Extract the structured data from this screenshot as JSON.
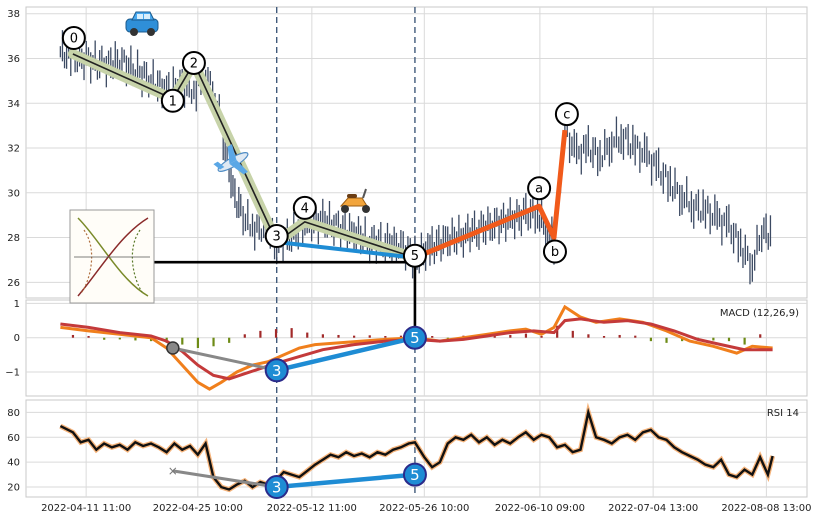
{
  "chart_data": {
    "type": "line",
    "panels": [
      {
        "id": "price",
        "ylim": [
          25.3,
          38.3
        ],
        "yticks": [
          26,
          28,
          30,
          32,
          34,
          36,
          38
        ]
      },
      {
        "id": "macd",
        "name": "MACD (12,26,9)",
        "ylim": [
          -1.7,
          1.1
        ],
        "yticks": [
          -1,
          0,
          1
        ],
        "yticklabels": [
          "−1",
          "0",
          "1"
        ]
      },
      {
        "id": "rsi",
        "name": "RSI 14",
        "ylim": [
          12,
          90
        ],
        "yticks": [
          20,
          40,
          60,
          80
        ],
        "yticklabels": [
          "20",
          "40",
          "60",
          "80"
        ]
      }
    ],
    "x_range": [
      0,
      100
    ],
    "x_ticks": [
      {
        "x": 7.7,
        "label": "2022-04-11 11:00"
      },
      {
        "x": 22.0,
        "label": "2022-04-25 10:00"
      },
      {
        "x": 36.6,
        "label": "2022-05-12 11:00"
      },
      {
        "x": 51.0,
        "label": "2022-05-26 10:00"
      },
      {
        "x": 65.8,
        "label": "2022-06-10 09:00"
      },
      {
        "x": 80.3,
        "label": "2022-07-04 13:00"
      },
      {
        "x": 94.8,
        "label": "2022-08-08 13:00"
      }
    ],
    "vlines_x": [
      32.1,
      49.8
    ],
    "price_series": [
      [
        4.4,
        36.3
      ],
      [
        6,
        36.1
      ],
      [
        8,
        35.9
      ],
      [
        10,
        35.7
      ],
      [
        12,
        35.9
      ],
      [
        14,
        35.5
      ],
      [
        16,
        35.0
      ],
      [
        18,
        34.6
      ],
      [
        20,
        34.8
      ],
      [
        21.5,
        34.5
      ],
      [
        23,
        35.3
      ],
      [
        24.5,
        34.0
      ],
      [
        25.5,
        32.0
      ],
      [
        26.5,
        30.1
      ],
      [
        27.5,
        29.1
      ],
      [
        29,
        28.4
      ],
      [
        31,
        28.5
      ],
      [
        32.1,
        27.7
      ],
      [
        34,
        28.1
      ],
      [
        36,
        28.6
      ],
      [
        38,
        28.8
      ],
      [
        40,
        28.4
      ],
      [
        42,
        28.2
      ],
      [
        44,
        27.8
      ],
      [
        46,
        27.8
      ],
      [
        48,
        27.6
      ],
      [
        49.8,
        27.1
      ],
      [
        52,
        27.6
      ],
      [
        54,
        27.9
      ],
      [
        56,
        28.1
      ],
      [
        58,
        28.4
      ],
      [
        60,
        28.6
      ],
      [
        62,
        28.8
      ],
      [
        64,
        29.0
      ],
      [
        65.5,
        29.1
      ],
      [
        66.8,
        28.3
      ],
      [
        67.6,
        27.8
      ],
      [
        69.0,
        32.7
      ],
      [
        70.5,
        31.7
      ],
      [
        72,
        32.0
      ],
      [
        73.5,
        31.6
      ],
      [
        75,
        32.3
      ],
      [
        76.5,
        32.5
      ],
      [
        78,
        32.0
      ],
      [
        79.5,
        31.6
      ],
      [
        81,
        31.0
      ],
      [
        82.5,
        30.4
      ],
      [
        84,
        29.9
      ],
      [
        85.5,
        29.4
      ],
      [
        87,
        29.2
      ],
      [
        88.5,
        28.8
      ],
      [
        90,
        28.5
      ],
      [
        91.5,
        27.6
      ],
      [
        93,
        26.8
      ],
      [
        94.2,
        28.3
      ],
      [
        95.6,
        28.1
      ]
    ],
    "macd_series": {
      "line1": [
        [
          4.4,
          0.3
        ],
        [
          8,
          0.2
        ],
        [
          12,
          0.1
        ],
        [
          16,
          0.0
        ],
        [
          18,
          -0.3
        ],
        [
          20,
          -0.8
        ],
        [
          22,
          -1.3
        ],
        [
          23.5,
          -1.5
        ],
        [
          25,
          -1.3
        ],
        [
          27,
          -1.0
        ],
        [
          29,
          -0.8
        ],
        [
          31,
          -0.7
        ],
        [
          33,
          -0.5
        ],
        [
          35,
          -0.3
        ],
        [
          37,
          -0.2
        ],
        [
          40,
          -0.15
        ],
        [
          43,
          -0.1
        ],
        [
          46,
          -0.05
        ],
        [
          49.8,
          0.0
        ],
        [
          53,
          -0.1
        ],
        [
          56,
          0.0
        ],
        [
          59,
          0.1
        ],
        [
          62,
          0.2
        ],
        [
          64,
          0.25
        ],
        [
          66,
          0.1
        ],
        [
          67.6,
          0.3
        ],
        [
          69.0,
          0.9
        ],
        [
          71,
          0.6
        ],
        [
          73,
          0.45
        ],
        [
          76,
          0.55
        ],
        [
          79,
          0.45
        ],
        [
          82,
          0.2
        ],
        [
          85,
          -0.1
        ],
        [
          88,
          -0.25
        ],
        [
          91,
          -0.45
        ],
        [
          93,
          -0.25
        ],
        [
          95.6,
          -0.3
        ]
      ],
      "line2": [
        [
          4.4,
          0.4
        ],
        [
          8,
          0.3
        ],
        [
          12,
          0.15
        ],
        [
          16,
          0.05
        ],
        [
          18,
          -0.1
        ],
        [
          20,
          -0.4
        ],
        [
          22,
          -0.8
        ],
        [
          24,
          -1.1
        ],
        [
          26,
          -1.2
        ],
        [
          28,
          -1.05
        ],
        [
          30,
          -0.9
        ],
        [
          32,
          -0.75
        ],
        [
          35,
          -0.55
        ],
        [
          38,
          -0.35
        ],
        [
          42,
          -0.2
        ],
        [
          46,
          -0.1
        ],
        [
          49.8,
          -0.05
        ],
        [
          53,
          -0.1
        ],
        [
          56,
          -0.05
        ],
        [
          59,
          0.05
        ],
        [
          62,
          0.15
        ],
        [
          65,
          0.2
        ],
        [
          67.6,
          0.15
        ],
        [
          69.0,
          0.5
        ],
        [
          71,
          0.55
        ],
        [
          74,
          0.45
        ],
        [
          77,
          0.5
        ],
        [
          80,
          0.4
        ],
        [
          83,
          0.2
        ],
        [
          86,
          -0.05
        ],
        [
          89,
          -0.2
        ],
        [
          92,
          -0.35
        ],
        [
          95.6,
          -0.35
        ]
      ],
      "hist": [
        [
          6,
          0.08
        ],
        [
          8,
          0.05
        ],
        [
          10,
          -0.06
        ],
        [
          12,
          -0.05
        ],
        [
          14,
          -0.08
        ],
        [
          16,
          -0.1
        ],
        [
          18,
          -0.15
        ],
        [
          20,
          -0.2
        ],
        [
          22,
          -0.3
        ],
        [
          24,
          -0.25
        ],
        [
          26,
          -0.15
        ],
        [
          28,
          0.1
        ],
        [
          30,
          0.2
        ],
        [
          32,
          0.25
        ],
        [
          34,
          0.28
        ],
        [
          36,
          0.15
        ],
        [
          38,
          0.1
        ],
        [
          40,
          0.08
        ],
        [
          42,
          0.06
        ],
        [
          44,
          0.07
        ],
        [
          46,
          0.05
        ],
        [
          48,
          0.06
        ],
        [
          50,
          0.08
        ],
        [
          52,
          0.05
        ],
        [
          54,
          -0.05
        ],
        [
          56,
          0.06
        ],
        [
          58,
          0.08
        ],
        [
          60,
          0.1
        ],
        [
          62,
          0.08
        ],
        [
          64,
          0.12
        ],
        [
          66,
          0.05
        ],
        [
          68,
          0.35
        ],
        [
          70,
          0.2
        ],
        [
          72,
          0.1
        ],
        [
          74,
          0.05
        ],
        [
          76,
          0.08
        ],
        [
          78,
          0.06
        ],
        [
          80,
          -0.1
        ],
        [
          82,
          -0.15
        ],
        [
          84,
          -0.1
        ],
        [
          86,
          -0.05
        ],
        [
          88,
          -0.08
        ],
        [
          90,
          -0.1
        ],
        [
          92,
          -0.2
        ],
        [
          94,
          0.1
        ]
      ]
    },
    "rsi_series": [
      [
        4.4,
        69
      ],
      [
        6,
        64
      ],
      [
        7,
        56
      ],
      [
        8,
        58
      ],
      [
        9,
        50
      ],
      [
        10,
        55
      ],
      [
        11,
        52
      ],
      [
        12,
        54
      ],
      [
        13,
        50
      ],
      [
        14,
        56
      ],
      [
        15,
        53
      ],
      [
        16,
        55
      ],
      [
        17,
        52
      ],
      [
        18,
        48
      ],
      [
        19,
        55
      ],
      [
        20,
        50
      ],
      [
        21,
        53
      ],
      [
        22,
        46
      ],
      [
        23,
        55
      ],
      [
        24,
        28
      ],
      [
        25,
        20
      ],
      [
        26,
        18
      ],
      [
        27,
        22
      ],
      [
        28,
        25
      ],
      [
        29,
        20
      ],
      [
        30,
        24
      ],
      [
        31,
        22
      ],
      [
        32.1,
        26
      ],
      [
        33,
        32
      ],
      [
        34,
        30
      ],
      [
        35,
        28
      ],
      [
        36,
        33
      ],
      [
        37,
        38
      ],
      [
        38,
        42
      ],
      [
        39,
        46
      ],
      [
        40,
        44
      ],
      [
        41,
        48
      ],
      [
        42,
        45
      ],
      [
        43,
        47
      ],
      [
        44,
        44
      ],
      [
        45,
        48
      ],
      [
        46,
        46
      ],
      [
        47,
        50
      ],
      [
        48,
        52
      ],
      [
        49,
        55
      ],
      [
        49.8,
        56
      ],
      [
        51,
        44
      ],
      [
        52,
        36
      ],
      [
        53,
        40
      ],
      [
        54,
        55
      ],
      [
        55,
        60
      ],
      [
        56,
        58
      ],
      [
        57,
        62
      ],
      [
        58,
        56
      ],
      [
        59,
        60
      ],
      [
        60,
        54
      ],
      [
        61,
        58
      ],
      [
        62,
        55
      ],
      [
        63,
        60
      ],
      [
        64,
        64
      ],
      [
        65,
        58
      ],
      [
        66,
        62
      ],
      [
        67,
        60
      ],
      [
        68,
        52
      ],
      [
        69,
        54
      ],
      [
        70,
        48
      ],
      [
        71,
        50
      ],
      [
        72,
        80
      ],
      [
        73,
        60
      ],
      [
        74,
        58
      ],
      [
        75,
        55
      ],
      [
        76,
        60
      ],
      [
        77,
        62
      ],
      [
        78,
        58
      ],
      [
        79,
        64
      ],
      [
        80,
        66
      ],
      [
        81,
        60
      ],
      [
        82,
        58
      ],
      [
        83,
        52
      ],
      [
        84,
        48
      ],
      [
        85,
        45
      ],
      [
        86,
        42
      ],
      [
        87,
        38
      ],
      [
        88,
        36
      ],
      [
        89,
        42
      ],
      [
        90,
        30
      ],
      [
        91,
        28
      ],
      [
        92,
        34
      ],
      [
        93,
        30
      ],
      [
        94,
        44
      ],
      [
        95,
        30
      ],
      [
        95.6,
        45
      ]
    ],
    "wave_points": [
      {
        "label": "0",
        "x": 6.0,
        "y": 36.2
      },
      {
        "label": "1",
        "x": 18.8,
        "y": 34.2
      },
      {
        "label": "2",
        "x": 21.5,
        "y": 35.8
      },
      {
        "label": "3",
        "x": 32.1,
        "y": 27.8
      },
      {
        "label": "4",
        "x": 35.7,
        "y": 28.7
      },
      {
        "label": "5",
        "x": 49.8,
        "y": 27.1
      }
    ],
    "abc_points": [
      {
        "label": "a",
        "x": 65.7,
        "y": 29.4
      },
      {
        "label": "b",
        "x": 67.6,
        "y": 28.0
      },
      {
        "label": "c",
        "x": 69.0,
        "y": 32.8
      }
    ],
    "divergence_macd": [
      {
        "label": "",
        "x": 18.8,
        "y": -0.3
      },
      {
        "label": "3",
        "x": 32.1,
        "y": -0.95
      },
      {
        "label": "5",
        "x": 49.8,
        "y": 0.0
      }
    ],
    "divergence_rsi": [
      {
        "label": "",
        "x": 18.8,
        "y": 33
      },
      {
        "label": "3",
        "x": 32.1,
        "y": 20
      },
      {
        "label": "5",
        "x": 49.8,
        "y": 30
      }
    ],
    "baseline_y": 26.9,
    "colors": {
      "candle": "#3c4a63",
      "impulse": "#c7d3a9",
      "impulse_line": "#222222",
      "correction": "#f15a1b",
      "projection": "#1e8cd4",
      "macd_line1": "#f07f1c",
      "macd_line2": "#c43a3a",
      "hist_pos": "#a22a2a",
      "hist_neg": "#6d8b16",
      "rsi_line": "#111111",
      "rsi_glow": "#f5b37a",
      "vline": "#405a7a",
      "grid": "#dadada",
      "connector": "#888888"
    },
    "icons": [
      "car-icon",
      "airplane-icon",
      "scooter-icon",
      "inset-chart-icon"
    ]
  }
}
